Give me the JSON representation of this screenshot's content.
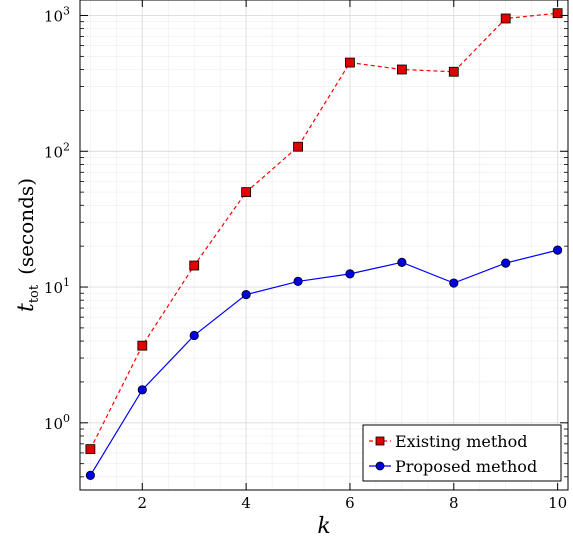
{
  "chart_data": {
    "type": "line",
    "xlabel": "k",
    "ylabel": {
      "symbol": "t",
      "subscript": "tot",
      "unit": "(seconds)"
    },
    "y_scale": "log",
    "xlim": [
      0.8,
      10.2
    ],
    "ylim": [
      0.32,
      1300
    ],
    "x_ticks": [
      2,
      4,
      6,
      8,
      10
    ],
    "y_ticks": [
      {
        "value": 1,
        "base": "10",
        "exp": "0"
      },
      {
        "value": 10,
        "base": "10",
        "exp": "1"
      },
      {
        "value": 100,
        "base": "10",
        "exp": "2"
      },
      {
        "value": 1000,
        "base": "10",
        "exp": "3"
      }
    ],
    "grid": true,
    "legend_position": "bottom-right",
    "x": [
      1,
      2,
      3,
      4,
      5,
      6,
      7,
      8,
      9,
      10
    ],
    "series": [
      {
        "name": "Existing method",
        "color": "#ff0000",
        "marker": "square",
        "line": "dashed",
        "values": [
          0.64,
          3.7,
          14.4,
          50,
          108,
          450,
          400,
          385,
          950,
          1040
        ]
      },
      {
        "name": "Proposed method",
        "color": "#0000ff",
        "marker": "circle",
        "line": "solid",
        "values": [
          0.41,
          1.75,
          4.4,
          8.8,
          11.0,
          12.5,
          15.2,
          10.7,
          15.0,
          18.7
        ]
      }
    ]
  }
}
